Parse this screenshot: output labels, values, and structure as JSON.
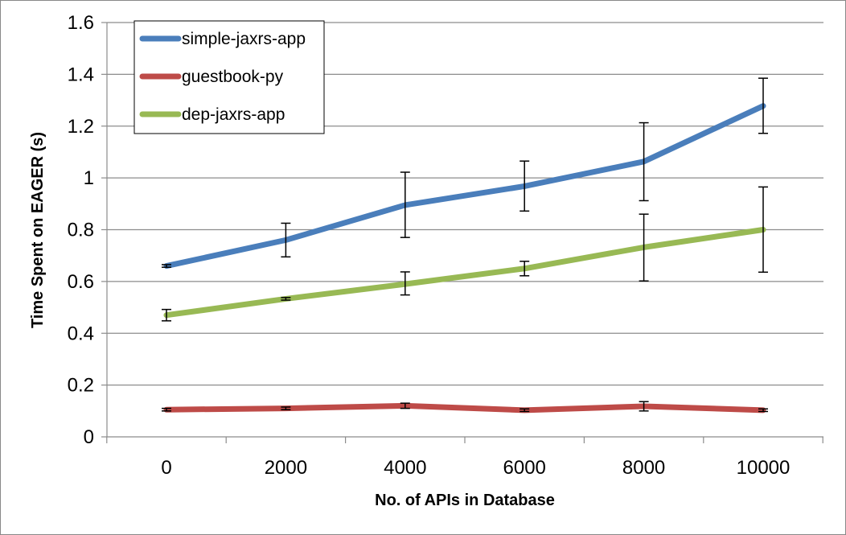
{
  "chart_data": {
    "type": "line",
    "title": "",
    "xlabel": "No. of APIs in Database",
    "ylabel": "Time Spent on EAGER (s)",
    "x": [
      0,
      2000,
      4000,
      6000,
      8000,
      10000
    ],
    "x_tick_labels": [
      "0",
      "2000",
      "4000",
      "6000",
      "8000",
      "10000"
    ],
    "ylim": [
      0,
      1.6
    ],
    "y_ticks": [
      0,
      0.2,
      0.4,
      0.6,
      0.8,
      1.0,
      1.2,
      1.4,
      1.6
    ],
    "y_tick_labels": [
      "0",
      "0.2",
      "0.4",
      "0.6",
      "0.8",
      "1",
      "1.2",
      "1.4",
      "1.6"
    ],
    "grid": "horizontal",
    "legend_position": "top-left",
    "series": [
      {
        "name": "simple-jaxrs-app",
        "color": "#4a7ebb",
        "values": [
          0.66,
          0.76,
          0.895,
          0.968,
          1.063,
          1.278
        ],
        "error_low": [
          0.655,
          0.695,
          0.77,
          0.872,
          0.912,
          1.172
        ],
        "error_high": [
          0.665,
          0.825,
          1.022,
          1.065,
          1.213,
          1.385
        ]
      },
      {
        "name": "guestbook-py",
        "color": "#be4b48",
        "values": [
          0.105,
          0.11,
          0.12,
          0.103,
          0.118,
          0.103
        ],
        "error_low": [
          0.1,
          0.105,
          0.11,
          0.098,
          0.1,
          0.098
        ],
        "error_high": [
          0.11,
          0.115,
          0.13,
          0.108,
          0.136,
          0.108
        ]
      },
      {
        "name": "dep-jaxrs-app",
        "color": "#98b954",
        "values": [
          0.47,
          0.533,
          0.59,
          0.65,
          0.732,
          0.8
        ],
        "error_low": [
          0.448,
          0.528,
          0.548,
          0.622,
          0.602,
          0.636
        ],
        "error_high": [
          0.492,
          0.538,
          0.637,
          0.678,
          0.86,
          0.965
        ]
      }
    ]
  }
}
